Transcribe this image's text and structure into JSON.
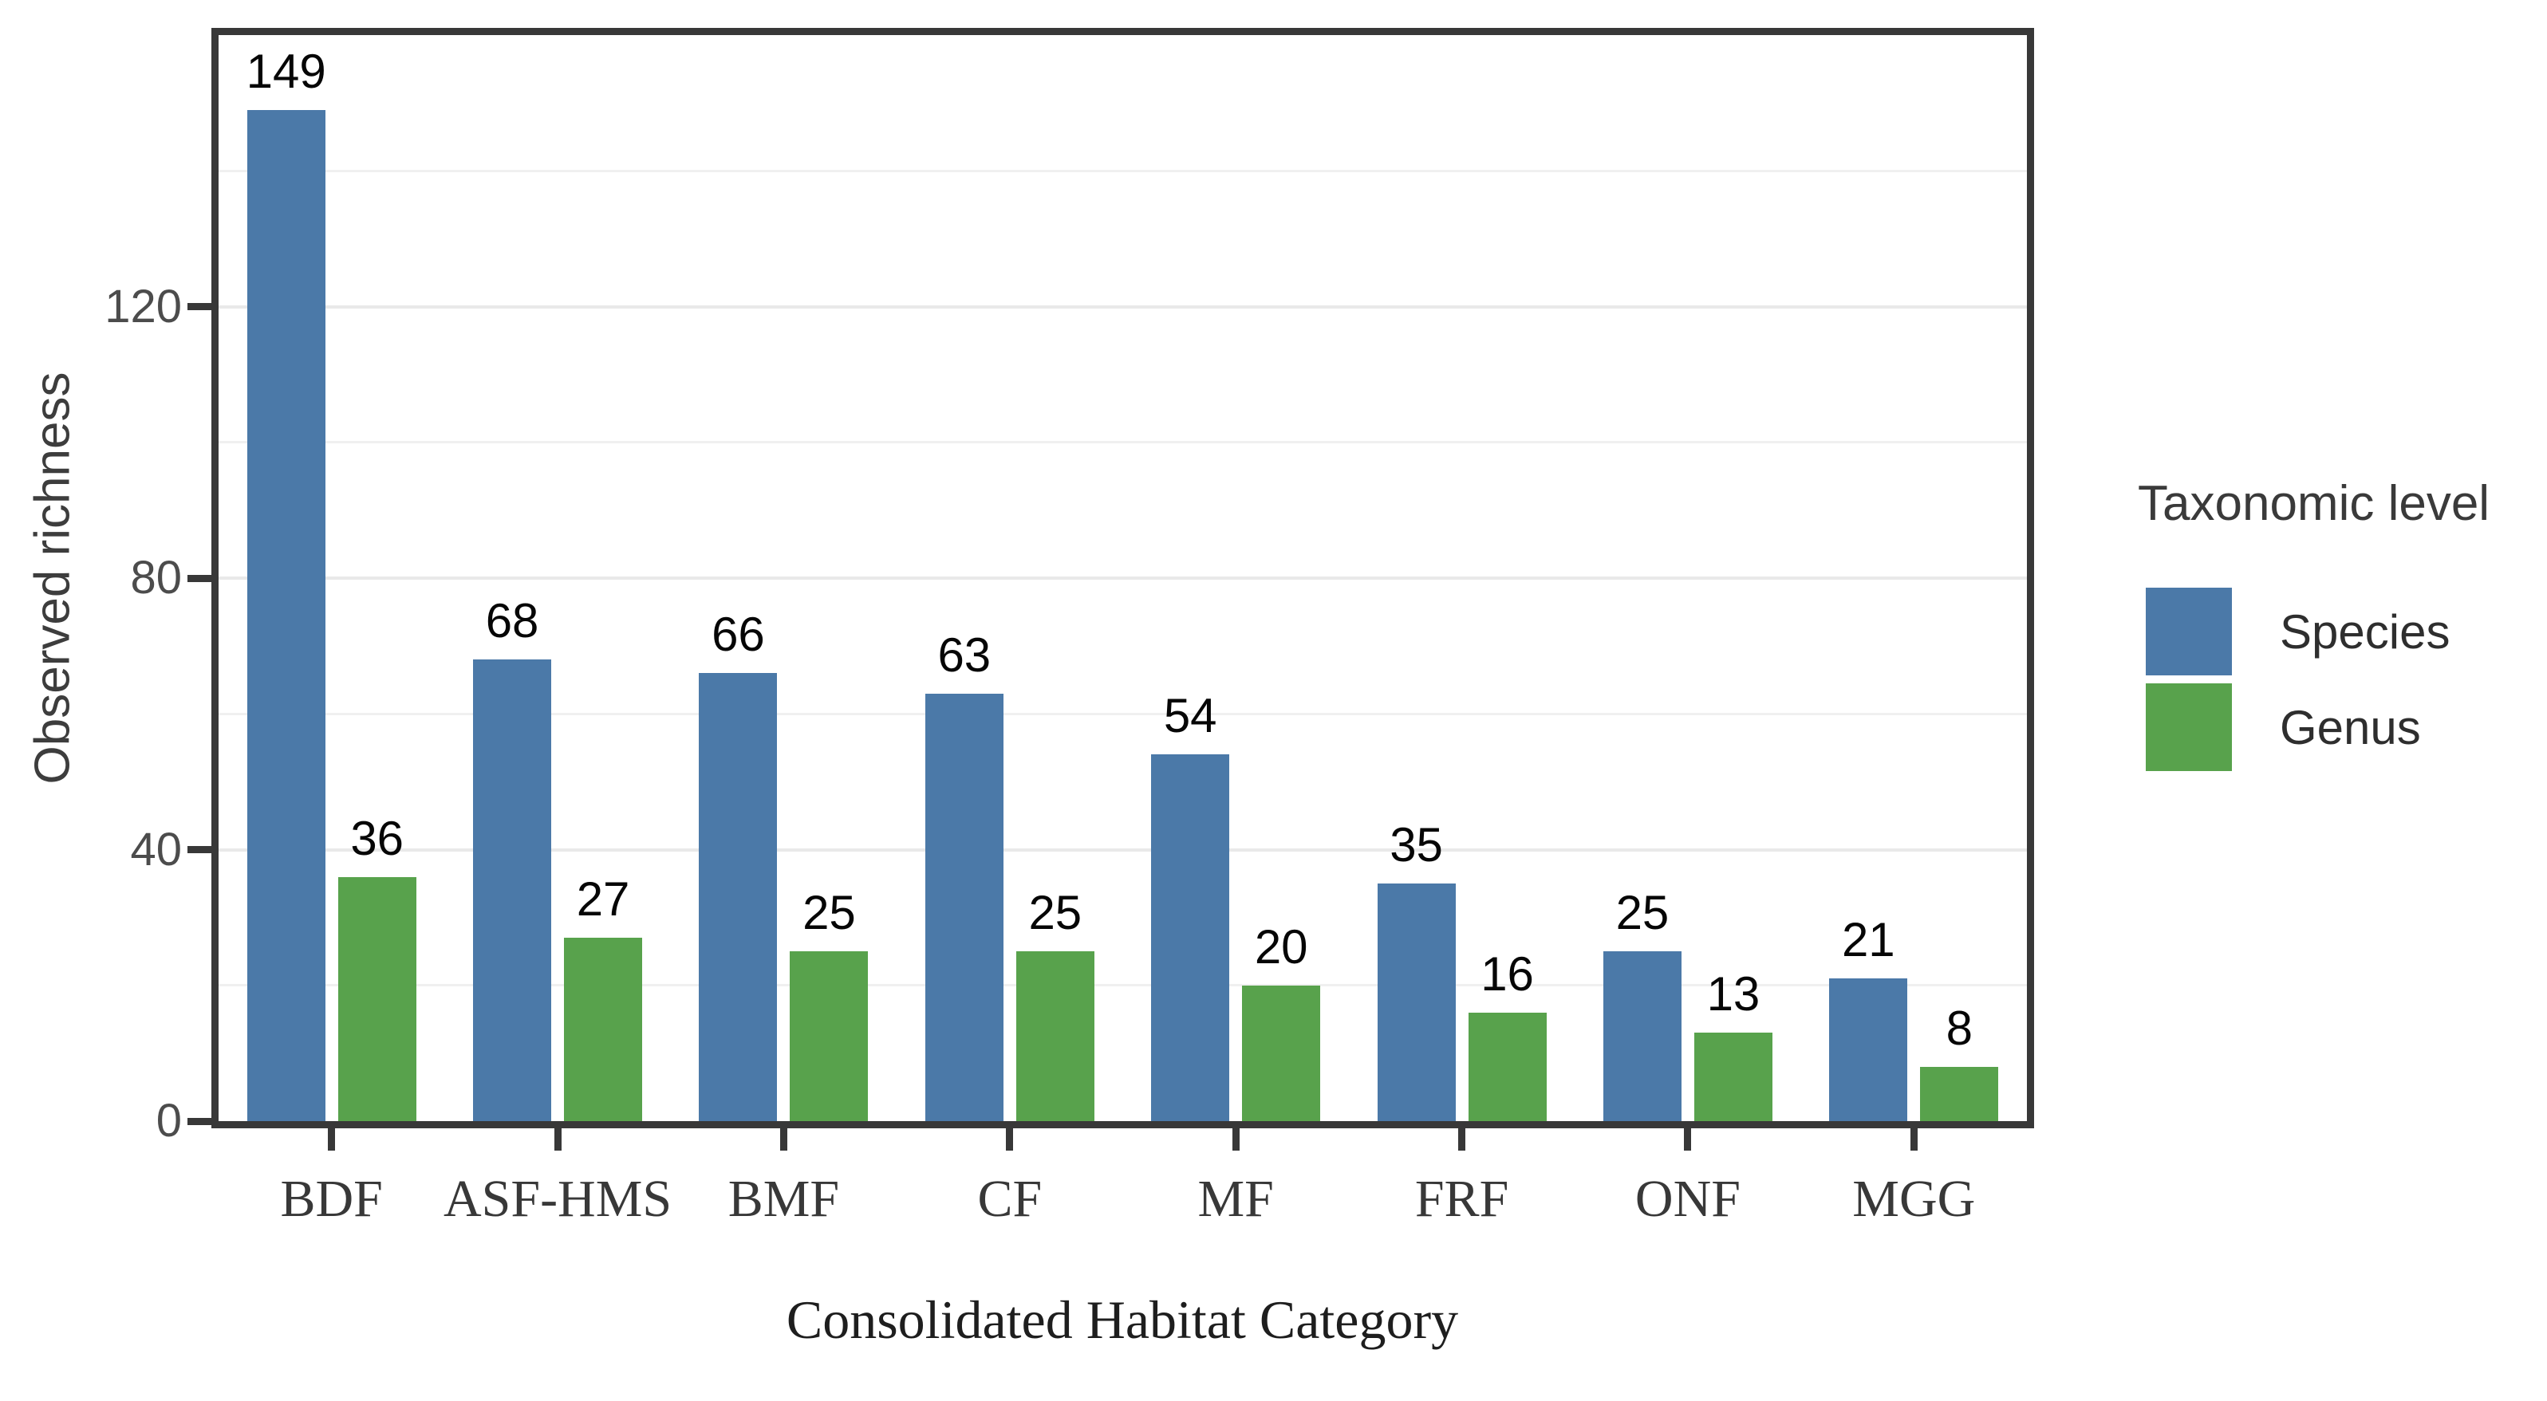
{
  "chart_data": {
    "type": "bar",
    "title": "",
    "categories": [
      "BDF",
      "ASF-HMS",
      "BMF",
      "CF",
      "MF",
      "FRF",
      "ONF",
      "MGG"
    ],
    "series": [
      {
        "name": "Species",
        "color": "#4b79a8",
        "values": [
          149,
          68,
          66,
          63,
          54,
          35,
          25,
          21
        ]
      },
      {
        "name": "Genus",
        "color": "#58a24c",
        "values": [
          36,
          27,
          25,
          25,
          20,
          16,
          13,
          8
        ]
      }
    ],
    "xlabel": "Consolidated Habitat Category",
    "ylabel": "Observed richness",
    "ylim": [
      0,
      160
    ],
    "yticks": [
      0,
      40,
      80,
      120
    ],
    "grid_step": 20,
    "grid": "horizontal-only",
    "bar_value_labels": true,
    "legend_title": "Taxonomic level",
    "legend_position": "right-of-plot",
    "legend_items": [
      "Species",
      "Genus"
    ]
  }
}
